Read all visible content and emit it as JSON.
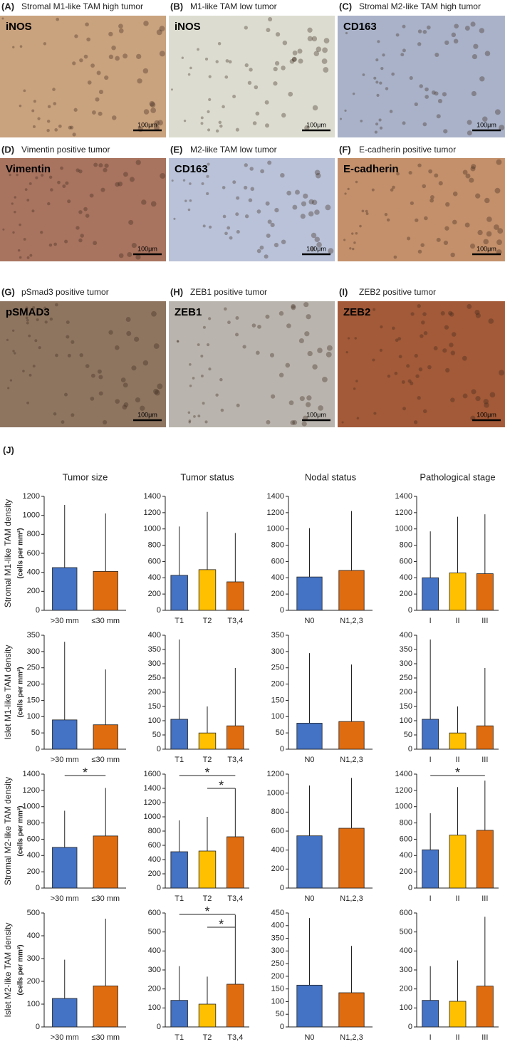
{
  "panels": [
    {
      "letter": "(A)",
      "title": "Stromal M1-like TAM high tumor",
      "stain": "iNOS",
      "scale": "100μm",
      "color": "#c9a27e"
    },
    {
      "letter": "(B)",
      "title": "M1-like TAM low tumor",
      "stain": "iNOS",
      "scale": "100μm",
      "color": "#dcdcd0"
    },
    {
      "letter": "(C)",
      "title": "Stromal M2-like TAM high tumor",
      "stain": "CD163",
      "scale": "100μm",
      "color": "#a9b2c8"
    },
    {
      "letter": "(D)",
      "title": "Vimentin positive tumor",
      "stain": "Vimentin",
      "scale": "100μm",
      "color": "#a8735f"
    },
    {
      "letter": "(E)",
      "title": "M2-like TAM low tumor",
      "stain": "CD163",
      "scale": "100μm",
      "color": "#b9c2d8"
    },
    {
      "letter": "(F)",
      "title": "E-cadherin positive tumor",
      "stain": "E-cadherin",
      "scale": "100μm",
      "color": "#c3906b"
    },
    {
      "letter": "(G)",
      "title": "pSmad3 positive tumor",
      "stain": "pSMAD3",
      "scale": "100μm",
      "color": "#8e7560"
    },
    {
      "letter": "(H)",
      "title": "ZEB1 positive tumor",
      "stain": "ZEB1",
      "scale": "100μm",
      "color": "#b9b4ad"
    },
    {
      "letter": "(I)",
      "title": "ZEB2 positive tumor",
      "stain": "ZEB2",
      "scale": "100μm",
      "color": "#a35a38"
    }
  ],
  "section_label": "(J)",
  "columns": [
    "Tumor size",
    "Tumor status",
    "Nodal status",
    "Pathological stage"
  ],
  "rows": [
    {
      "label": "Stromal M1-like TAM density",
      "unit": "(cells per mm²)"
    },
    {
      "label": "Islet M1-like TAM density",
      "unit": "(cells per mm²)"
    },
    {
      "label": "Stromal M2-like TAM density",
      "unit": "(cells per mm²)"
    },
    {
      "label": "Islet M2-like TAM density",
      "unit": "(cells per mm²)"
    }
  ],
  "chart_data": [
    {
      "type": "bar",
      "categories": [
        ">30 mm",
        "≤30 mm"
      ],
      "values": [
        450,
        410
      ],
      "errors": [
        660,
        610
      ],
      "colors": [
        "#4472c4",
        "#e06c10"
      ],
      "ylim": [
        0,
        1200
      ],
      "yticks": [
        0,
        200,
        400,
        600,
        800,
        1000,
        1200
      ]
    },
    {
      "type": "bar",
      "categories": [
        "T1",
        "T2",
        "T3,4"
      ],
      "values": [
        430,
        500,
        350
      ],
      "errors": [
        600,
        710,
        600
      ],
      "colors": [
        "#4472c4",
        "#ffc000",
        "#e06c10"
      ],
      "ylim": [
        0,
        1400
      ],
      "yticks": [
        0,
        200,
        400,
        600,
        800,
        1000,
        1200,
        1400
      ]
    },
    {
      "type": "bar",
      "categories": [
        "N0",
        "N1,2,3"
      ],
      "values": [
        410,
        490
      ],
      "errors": [
        600,
        730
      ],
      "colors": [
        "#4472c4",
        "#e06c10"
      ],
      "ylim": [
        0,
        1400
      ],
      "yticks": [
        0,
        200,
        400,
        600,
        800,
        1000,
        1200,
        1400
      ]
    },
    {
      "type": "bar",
      "categories": [
        "I",
        "II",
        "III"
      ],
      "values": [
        400,
        460,
        450
      ],
      "errors": [
        570,
        690,
        730
      ],
      "colors": [
        "#4472c4",
        "#ffc000",
        "#e06c10"
      ],
      "ylim": [
        0,
        1400
      ],
      "yticks": [
        0,
        200,
        400,
        600,
        800,
        1000,
        1200,
        1400
      ]
    },
    {
      "type": "bar",
      "categories": [
        ">30 mm",
        "≤30 mm"
      ],
      "values": [
        90,
        75
      ],
      "errors": [
        240,
        170
      ],
      "colors": [
        "#4472c4",
        "#e06c10"
      ],
      "ylim": [
        0,
        350
      ],
      "yticks": [
        0,
        50,
        100,
        150,
        200,
        250,
        300,
        350
      ]
    },
    {
      "type": "bar",
      "categories": [
        "T1",
        "T2",
        "T3,4"
      ],
      "values": [
        105,
        57,
        82
      ],
      "errors": [
        280,
        93,
        203
      ],
      "colors": [
        "#4472c4",
        "#ffc000",
        "#e06c10"
      ],
      "ylim": [
        0,
        400
      ],
      "yticks": [
        0,
        50,
        100,
        150,
        200,
        250,
        300,
        350,
        400
      ]
    },
    {
      "type": "bar",
      "categories": [
        "N0",
        "N1,2,3"
      ],
      "values": [
        80,
        85
      ],
      "errors": [
        215,
        175
      ],
      "colors": [
        "#4472c4",
        "#e06c10"
      ],
      "ylim": [
        0,
        350
      ],
      "yticks": [
        0,
        50,
        100,
        150,
        200,
        250,
        300,
        350
      ]
    },
    {
      "type": "bar",
      "categories": [
        "I",
        "II",
        "III"
      ],
      "values": [
        105,
        57,
        82
      ],
      "errors": [
        280,
        93,
        203
      ],
      "colors": [
        "#4472c4",
        "#ffc000",
        "#e06c10"
      ],
      "ylim": [
        0,
        400
      ],
      "yticks": [
        0,
        50,
        100,
        150,
        200,
        250,
        300,
        350,
        400
      ]
    },
    {
      "type": "bar",
      "categories": [
        ">30 mm",
        "≤30 mm"
      ],
      "values": [
        500,
        640
      ],
      "errors": [
        450,
        590
      ],
      "colors": [
        "#4472c4",
        "#e06c10"
      ],
      "ylim": [
        0,
        1400
      ],
      "yticks": [
        0,
        200,
        400,
        600,
        800,
        1000,
        1200,
        1400
      ],
      "annotations": [
        {
          "from": 0,
          "to": 1,
          "label": "*"
        }
      ]
    },
    {
      "type": "bar",
      "categories": [
        "T1",
        "T2",
        "T3,4"
      ],
      "values": [
        510,
        520,
        720
      ],
      "errors": [
        440,
        480,
        680
      ],
      "colors": [
        "#4472c4",
        "#ffc000",
        "#e06c10"
      ],
      "ylim": [
        0,
        1600
      ],
      "yticks": [
        0,
        200,
        400,
        600,
        800,
        1000,
        1200,
        1400,
        1600
      ],
      "annotations": [
        {
          "from": 0,
          "to": 2,
          "label": "*"
        },
        {
          "from": 1,
          "to": 2,
          "label": "*"
        }
      ]
    },
    {
      "type": "bar",
      "categories": [
        "N0",
        "N1,2,3"
      ],
      "values": [
        550,
        630
      ],
      "errors": [
        530,
        530
      ],
      "colors": [
        "#4472c4",
        "#e06c10"
      ],
      "ylim": [
        0,
        1200
      ],
      "yticks": [
        0,
        200,
        400,
        600,
        800,
        1000,
        1200
      ]
    },
    {
      "type": "bar",
      "categories": [
        "I",
        "II",
        "III"
      ],
      "values": [
        470,
        650,
        710
      ],
      "errors": [
        450,
        590,
        610
      ],
      "colors": [
        "#4472c4",
        "#ffc000",
        "#e06c10"
      ],
      "ylim": [
        0,
        1400
      ],
      "yticks": [
        0,
        200,
        400,
        600,
        800,
        1000,
        1200,
        1400
      ],
      "annotations": [
        {
          "from": 0,
          "to": 2,
          "label": "*"
        }
      ]
    },
    {
      "type": "bar",
      "categories": [
        ">30 mm",
        "≤30 mm"
      ],
      "values": [
        125,
        180
      ],
      "errors": [
        170,
        295
      ],
      "colors": [
        "#4472c4",
        "#e06c10"
      ],
      "ylim": [
        0,
        500
      ],
      "yticks": [
        0,
        100,
        200,
        300,
        400,
        500
      ]
    },
    {
      "type": "bar",
      "categories": [
        "T1",
        "T2",
        "T3,4"
      ],
      "values": [
        140,
        120,
        225
      ],
      "errors": [
        180,
        145,
        365
      ],
      "colors": [
        "#4472c4",
        "#ffc000",
        "#e06c10"
      ],
      "ylim": [
        0,
        600
      ],
      "yticks": [
        0,
        100,
        200,
        300,
        400,
        500,
        600
      ],
      "annotations": [
        {
          "from": 0,
          "to": 2,
          "label": "*"
        },
        {
          "from": 1,
          "to": 2,
          "label": "*"
        }
      ]
    },
    {
      "type": "bar",
      "categories": [
        "N0",
        "N1,2,3"
      ],
      "values": [
        165,
        135
      ],
      "errors": [
        265,
        185
      ],
      "colors": [
        "#4472c4",
        "#e06c10"
      ],
      "ylim": [
        0,
        450
      ],
      "yticks": [
        0,
        50,
        100,
        150,
        200,
        250,
        300,
        350,
        400,
        450
      ]
    },
    {
      "type": "bar",
      "categories": [
        "I",
        "II",
        "III"
      ],
      "values": [
        140,
        135,
        215
      ],
      "errors": [
        180,
        215,
        365
      ],
      "colors": [
        "#4472c4",
        "#ffc000",
        "#e06c10"
      ],
      "ylim": [
        0,
        600
      ],
      "yticks": [
        0,
        100,
        200,
        300,
        400,
        500,
        600
      ]
    }
  ]
}
